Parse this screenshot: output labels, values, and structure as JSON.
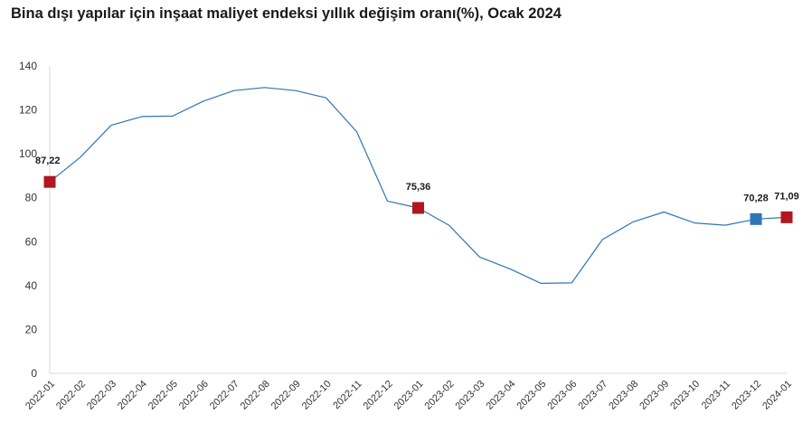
{
  "chart_data": {
    "type": "line",
    "title": "Bina dışı yapılar için inşaat maliyet endeksi yıllık değişim oranı(%), Ocak 2024",
    "xlabel": "",
    "ylabel": "",
    "ylim": [
      0,
      140
    ],
    "yticks": [
      0,
      20,
      40,
      60,
      80,
      100,
      120,
      140
    ],
    "grid": false,
    "legend": "none",
    "line_color": "#2E75B6",
    "categories": [
      "2022-01",
      "2022-02",
      "2022-03",
      "2022-04",
      "2022-05",
      "2022-06",
      "2022-07",
      "2022-08",
      "2022-09",
      "2022-10",
      "2022-11",
      "2022-12",
      "2023-01",
      "2023-02",
      "2023-03",
      "2023-04",
      "2023-05",
      "2023-06",
      "2023-07",
      "2023-08",
      "2023-09",
      "2023-10",
      "2023-11",
      "2023-12",
      "2024-01"
    ],
    "series": [
      {
        "values": [
          87.22,
          98.5,
          113.0,
          117.0,
          117.2,
          124.0,
          128.8,
          130.2,
          128.8,
          125.5,
          110.0,
          78.5,
          75.36,
          67.5,
          53.0,
          47.5,
          41.0,
          41.2,
          61.0,
          69.0,
          73.5,
          68.5,
          67.5,
          70.28,
          71.09
        ]
      }
    ],
    "highlights": [
      {
        "category": "2022-01",
        "value": 87.22,
        "label": "87,22",
        "color": "#B0171F"
      },
      {
        "category": "2023-01",
        "value": 75.36,
        "label": "75,36",
        "color": "#B0171F"
      },
      {
        "category": "2023-12",
        "value": 70.28,
        "label": "70,28",
        "color": "#2E75B6"
      },
      {
        "category": "2024-01",
        "value": 71.09,
        "label": "71,09",
        "color": "#B0171F"
      }
    ]
  }
}
